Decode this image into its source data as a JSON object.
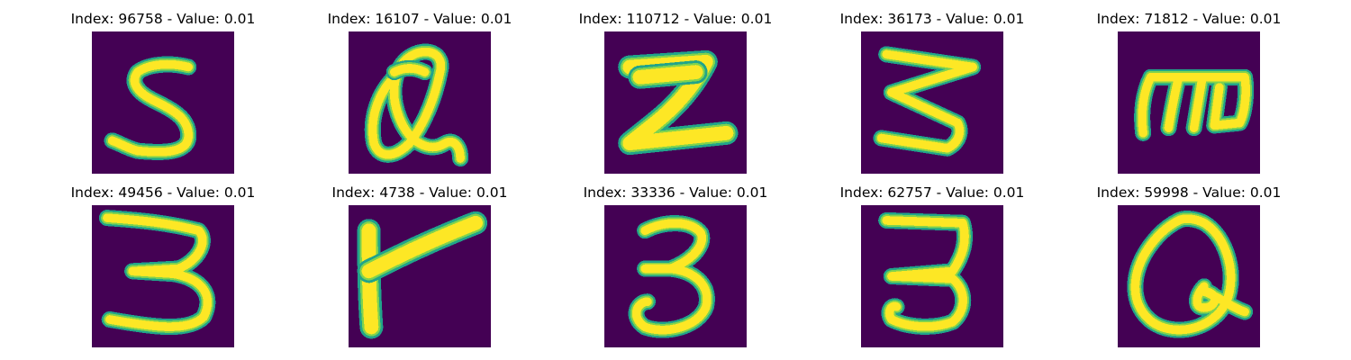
{
  "colors": {
    "background": "#440154",
    "stroke_edge": "#21a48a",
    "stroke_mid": "#7fd34e",
    "stroke_core": "#fde725"
  },
  "panels": [
    {
      "title": "Index: 96758 - Value: 0.01"
    },
    {
      "title": "Index: 16107 - Value: 0.01"
    },
    {
      "title": "Index: 110712 - Value: 0.01"
    },
    {
      "title": "Index: 36173 - Value: 0.01"
    },
    {
      "title": "Index: 71812 - Value: 0.01"
    },
    {
      "title": "Index: 49456 - Value: 0.01"
    },
    {
      "title": "Index: 4738 - Value: 0.01"
    },
    {
      "title": "Index: 33336 - Value: 0.01"
    },
    {
      "title": "Index: 62757 - Value: 0.01"
    },
    {
      "title": "Index: 59998 - Value: 0.01"
    }
  ]
}
